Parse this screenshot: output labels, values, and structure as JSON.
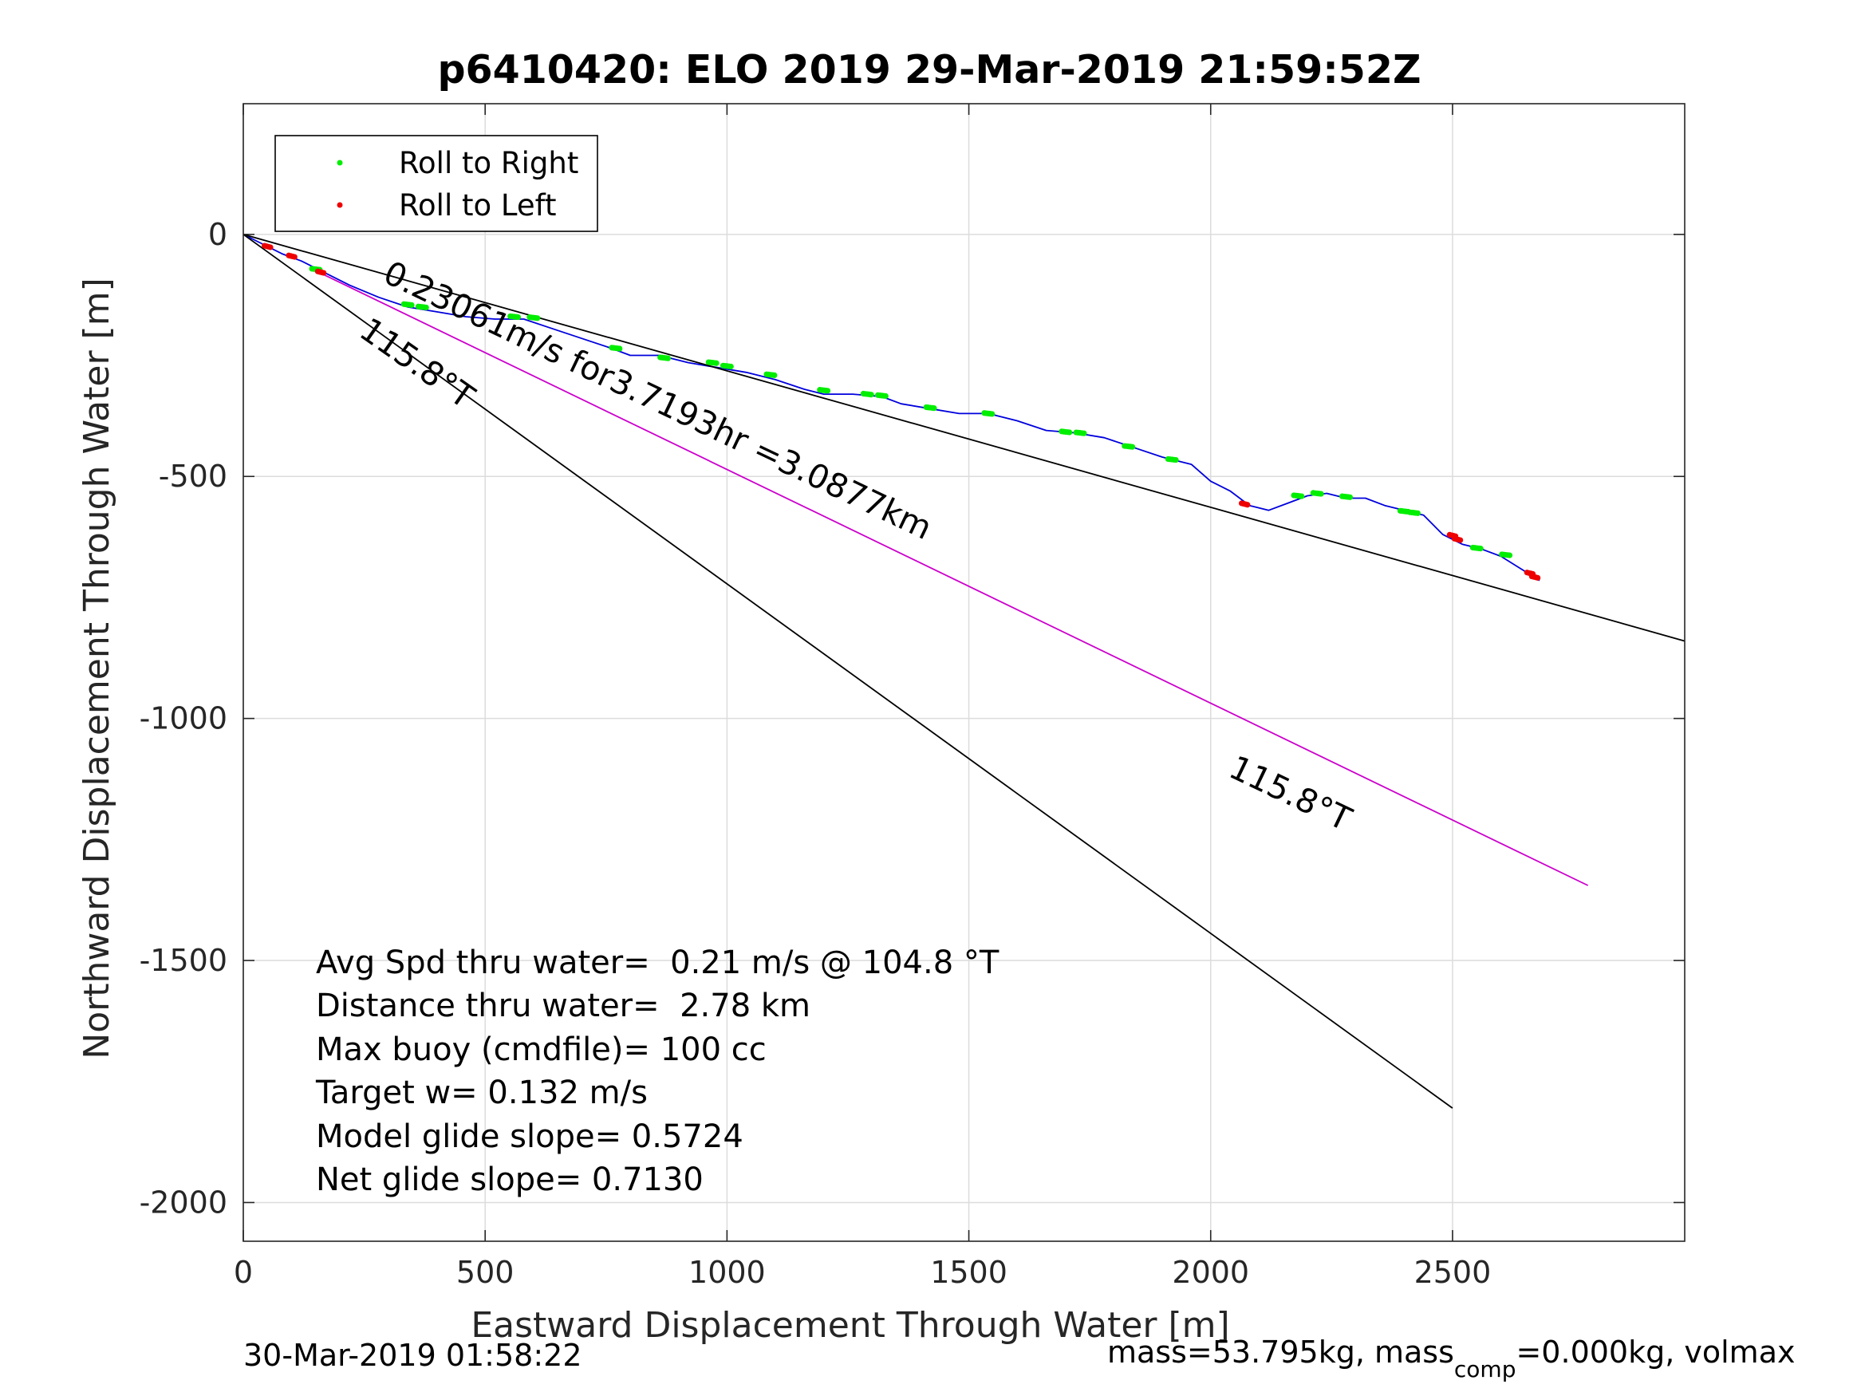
{
  "chart_data": {
    "type": "line",
    "title": "p6410420: ELO 2019 29-Mar-2019 21:59:52Z",
    "xlabel": "Eastward Displacement Through Water [m]",
    "ylabel": "Northward Displacement Through Water [m]",
    "xlim": [
      0,
      2980
    ],
    "ylim": [
      -2080,
      270
    ],
    "xticks": [
      0,
      500,
      1000,
      1500,
      2000,
      2500
    ],
    "yticks": [
      0,
      -500,
      -1000,
      -1500,
      -2000
    ],
    "xtick_labels": [
      "0",
      "500",
      "1000",
      "1500",
      "2000",
      "2500"
    ],
    "ytick_labels": [
      "0",
      "-500",
      "-1000",
      "-1500",
      "-2000"
    ],
    "grid": true,
    "legend": {
      "placement": "top-left",
      "entries": [
        {
          "label": "Roll to Right",
          "color": "#00ee00"
        },
        {
          "label": "Roll to Left",
          "color": "#ee0000"
        }
      ]
    },
    "series": [
      {
        "name": "track",
        "color": "#0000dd",
        "x": [
          0,
          40,
          80,
          120,
          160,
          220,
          280,
          340,
          400,
          460,
          520,
          580,
          640,
          700,
          760,
          800,
          860,
          920,
          980,
          1040,
          1100,
          1160,
          1200,
          1260,
          1320,
          1360,
          1420,
          1480,
          1540,
          1600,
          1660,
          1720,
          1780,
          1840,
          1900,
          1960,
          2000,
          2040,
          2080,
          2120,
          2160,
          2200,
          2240,
          2280,
          2320,
          2360,
          2400,
          2440,
          2480,
          2520,
          2560,
          2600,
          2640,
          2680
        ],
        "y": [
          0,
          -20,
          -40,
          -55,
          -75,
          -105,
          -130,
          -150,
          -160,
          -170,
          -175,
          -175,
          -195,
          -215,
          -235,
          -250,
          -250,
          -265,
          -275,
          -285,
          -300,
          -320,
          -330,
          -330,
          -335,
          -350,
          -360,
          -370,
          -370,
          -385,
          -405,
          -410,
          -420,
          -440,
          -460,
          -475,
          -510,
          -530,
          -560,
          -570,
          -555,
          -540,
          -535,
          -545,
          -545,
          -560,
          -570,
          -580,
          -620,
          -640,
          -650,
          -665,
          -690,
          -715
        ]
      },
      {
        "name": "wind reference",
        "color": "#000000",
        "x": [
          0,
          2980
        ],
        "y": [
          0,
          -840
        ]
      },
      {
        "name": "heading",
        "color": "#000000",
        "x": [
          0,
          2500
        ],
        "y": [
          0,
          -1805
        ]
      },
      {
        "name": "average heading",
        "color": "#cc00cc",
        "x": [
          160,
          2780
        ],
        "y": [
          -80,
          -1345
        ]
      }
    ],
    "roll_right": [
      [
        150,
        -72
      ],
      [
        340,
        -145
      ],
      [
        370,
        -150
      ],
      [
        560,
        -170
      ],
      [
        600,
        -172
      ],
      [
        770,
        -235
      ],
      [
        870,
        -255
      ],
      [
        970,
        -265
      ],
      [
        1000,
        -272
      ],
      [
        1090,
        -290
      ],
      [
        1200,
        -322
      ],
      [
        1290,
        -330
      ],
      [
        1320,
        -333
      ],
      [
        1420,
        -358
      ],
      [
        1540,
        -370
      ],
      [
        1700,
        -408
      ],
      [
        1730,
        -410
      ],
      [
        1830,
        -438
      ],
      [
        1920,
        -465
      ],
      [
        2180,
        -540
      ],
      [
        2220,
        -535
      ],
      [
        2280,
        -542
      ],
      [
        2400,
        -572
      ],
      [
        2420,
        -575
      ],
      [
        2550,
        -648
      ],
      [
        2610,
        -662
      ]
    ],
    "roll_left": [
      [
        50,
        -25
      ],
      [
        100,
        -45
      ],
      [
        160,
        -78
      ],
      [
        2070,
        -557
      ],
      [
        2500,
        -622
      ],
      [
        2510,
        -630
      ],
      [
        2660,
        -700
      ],
      [
        2670,
        -708
      ]
    ],
    "annotations": {
      "speed_label": "0.23061m/s for3.7193hr =3.0877km",
      "heading_label_1": "115.8°T",
      "heading_label_2": "115.8°T"
    },
    "stats": [
      "Avg Spd thru water=  0.21 m/s @ 104.8 °T",
      "Distance thru water=  2.78 km",
      "Max buoy (cmdfile)= 100 cc",
      "Target w= 0.132 m/s",
      "Model glide slope= 0.5724",
      "Net glide slope= 0.7130"
    ]
  },
  "footer": {
    "timestamp": "30-Mar-2019 01:58:22",
    "mass_text": "mass=53.795kg, mass",
    "mass_sub": "comp",
    "mass_tail": "=0.000kg, volmax"
  }
}
